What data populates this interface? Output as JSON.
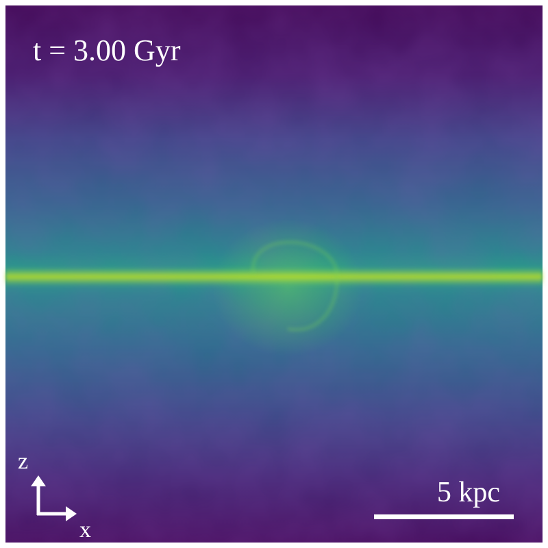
{
  "image": {
    "time_label": "t = 3.00 Gyr",
    "axes": {
      "vertical": "z",
      "horizontal": "x"
    },
    "scale_bar": "5 kpc"
  }
}
